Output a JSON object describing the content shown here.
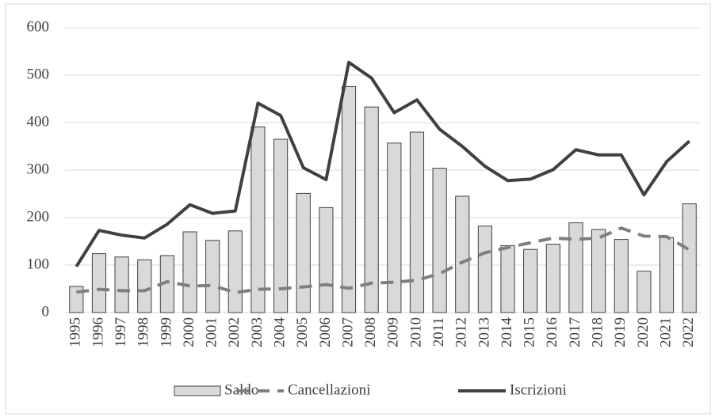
{
  "chart_data": {
    "type": "combo",
    "categories": [
      "1995",
      "1996",
      "1997",
      "1998",
      "1999",
      "2000",
      "2001",
      "2002",
      "2003",
      "2004",
      "2005",
      "2006",
      "2007",
      "2008",
      "2009",
      "2010",
      "2011",
      "2012",
      "2013",
      "2014",
      "2015",
      "2016",
      "2017",
      "2018",
      "2019",
      "2020",
      "2021",
      "2022"
    ],
    "series": [
      {
        "name": "Saldo",
        "type": "bar",
        "color": "#d9d9d9",
        "values": [
          55,
          124,
          117,
          111,
          120,
          170,
          152,
          172,
          391,
          365,
          251,
          221,
          476,
          433,
          357,
          380,
          304,
          245,
          182,
          141,
          133,
          144,
          189,
          175,
          154,
          87,
          158,
          229
        ]
      },
      {
        "name": "Cancellazioni",
        "type": "line",
        "dashed": true,
        "color": "#7f7f7f",
        "values": [
          43,
          49,
          46,
          46,
          65,
          56,
          57,
          42,
          49,
          50,
          54,
          59,
          51,
          62,
          64,
          68,
          82,
          106,
          126,
          137,
          147,
          157,
          154,
          157,
          178,
          161,
          160,
          132
        ]
      },
      {
        "name": "Iscrizioni",
        "type": "line",
        "dashed": false,
        "color": "#404040",
        "values": [
          97,
          173,
          163,
          157,
          186,
          227,
          209,
          214,
          441,
          415,
          305,
          280,
          527,
          494,
          421,
          448,
          386,
          350,
          308,
          278,
          281,
          301,
          343,
          332,
          332,
          248,
          318,
          361
        ]
      }
    ],
    "ylim": [
      0,
      600
    ],
    "yticks": [
      0,
      100,
      200,
      300,
      400,
      500,
      600
    ],
    "grid": true,
    "legend": "bottom"
  }
}
